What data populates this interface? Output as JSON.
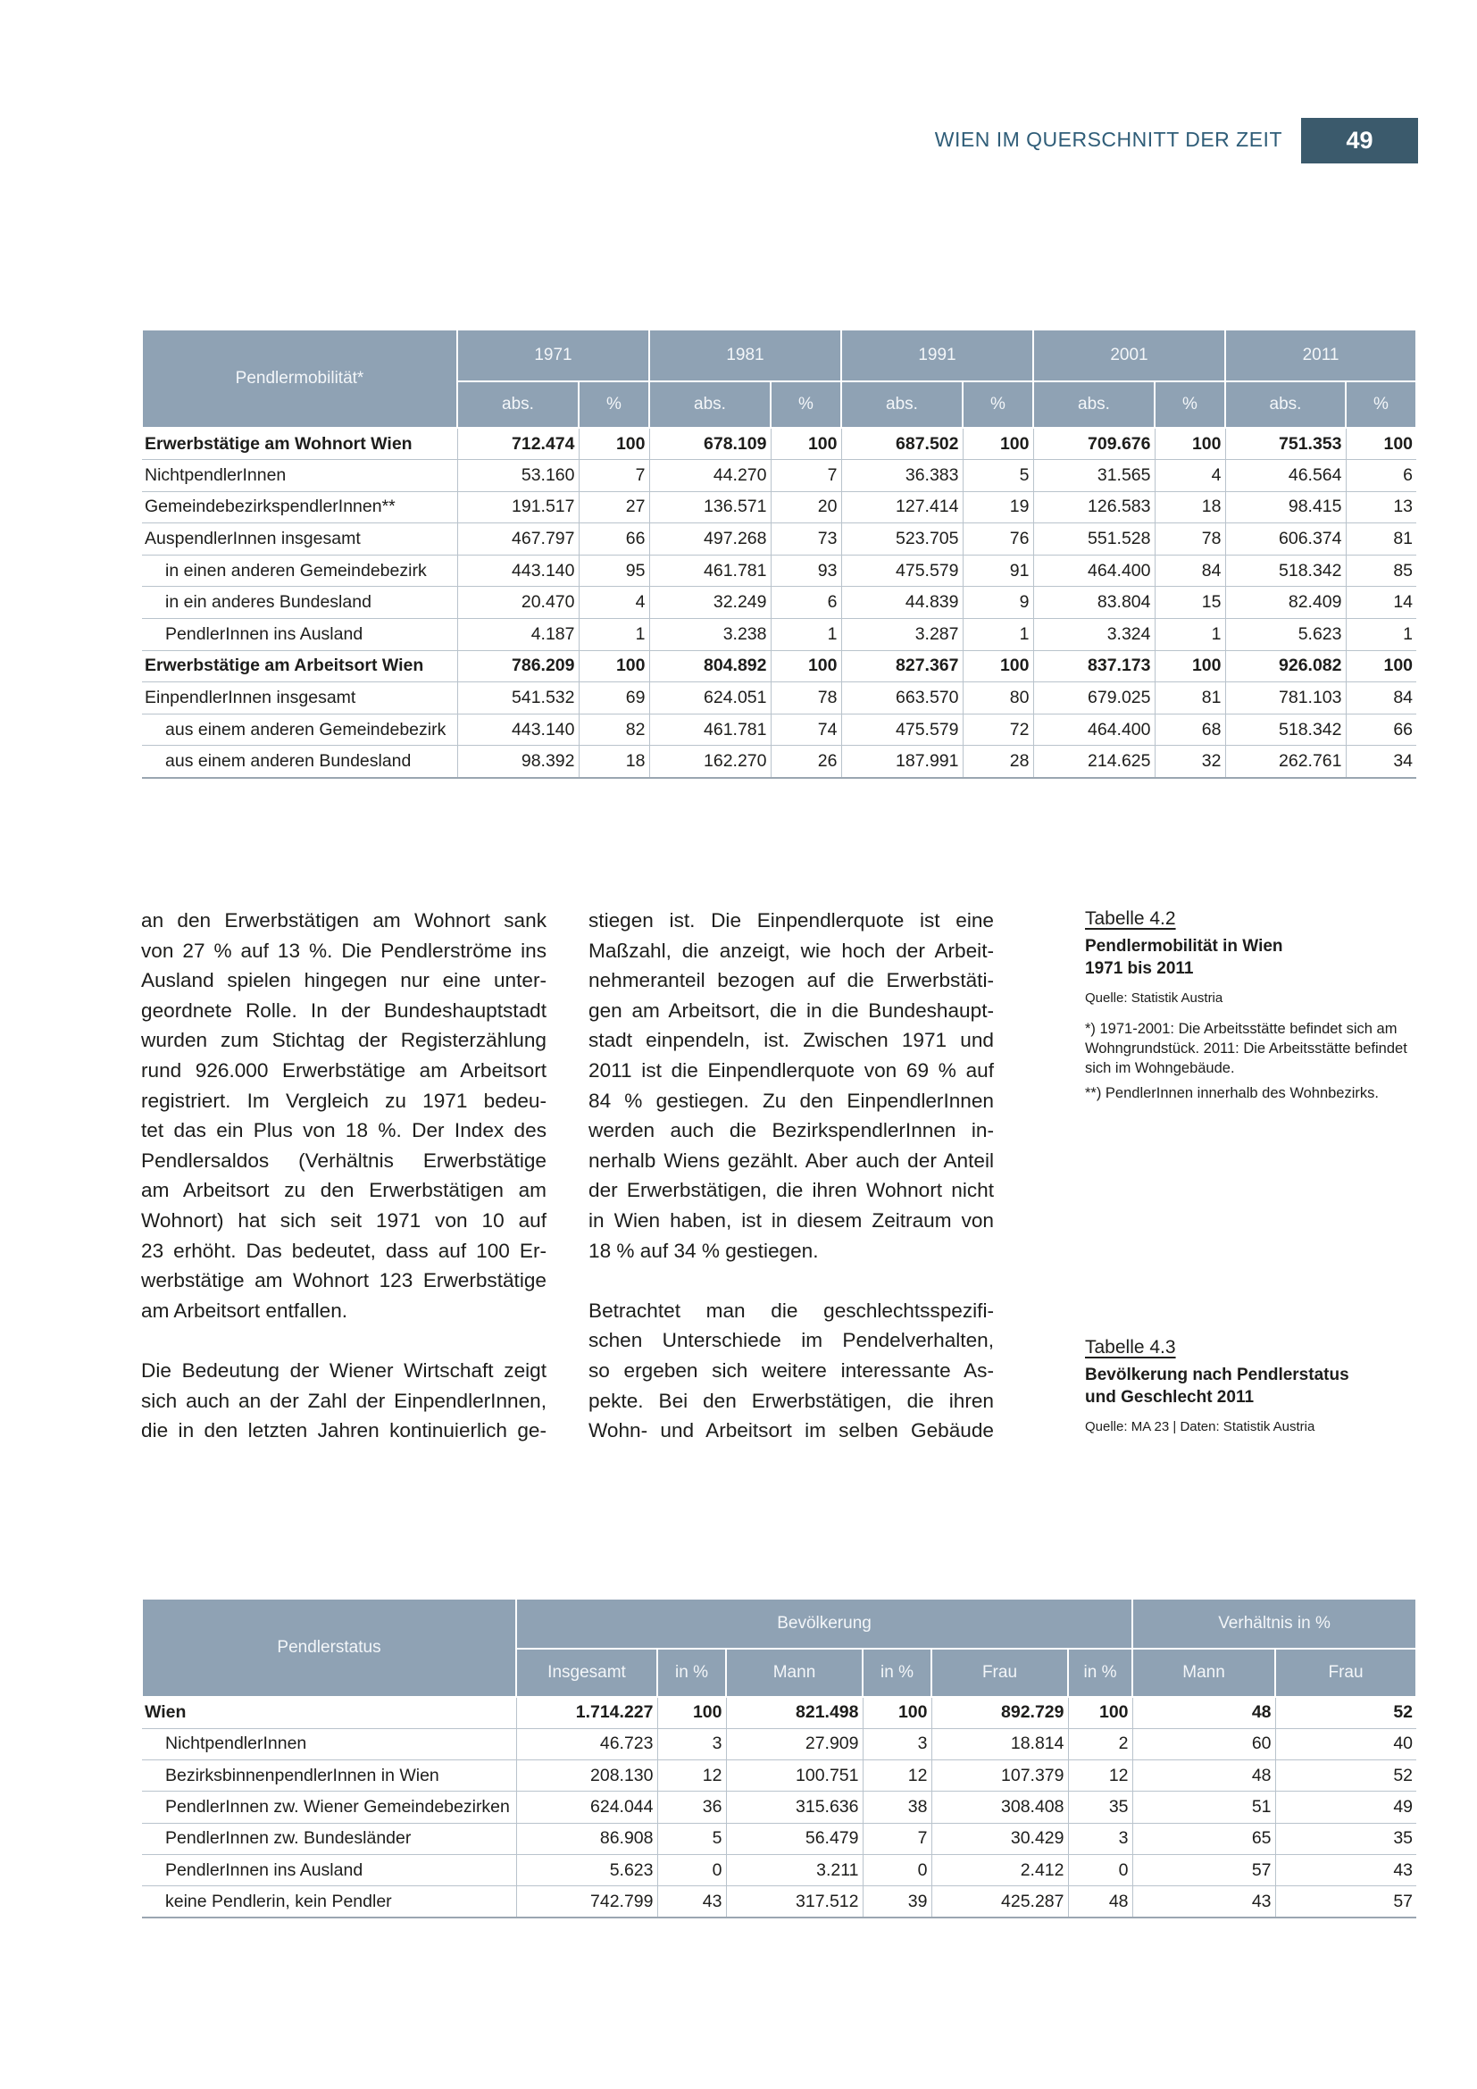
{
  "header": {
    "running_title": "WIEN IM QUERSCHNITT DER ZEIT",
    "page_number": "49"
  },
  "table_1": {
    "corner": "Pendlermobilität*",
    "years": [
      "1971",
      "1981",
      "1991",
      "2001",
      "2011"
    ],
    "subheaders": [
      "abs.",
      "%",
      "abs.",
      "%",
      "abs.",
      "%",
      "abs.",
      "%",
      "abs.",
      "%"
    ],
    "rows": [
      [
        "Erwerbstätige am Wohnort Wien",
        "712.474",
        "100",
        "678.109",
        "100",
        "687.502",
        "100",
        "709.676",
        "100",
        "751.353",
        "100"
      ],
      [
        "NichtpendlerInnen",
        "53.160",
        "7",
        "44.270",
        "7",
        "36.383",
        "5",
        "31.565",
        "4",
        "46.564",
        "6"
      ],
      [
        "GemeindebezirkspendlerInnen**",
        "191.517",
        "27",
        "136.571",
        "20",
        "127.414",
        "19",
        "126.583",
        "18",
        "98.415",
        "13"
      ],
      [
        "AuspendlerInnen insgesamt",
        "467.797",
        "66",
        "497.268",
        "73",
        "523.705",
        "76",
        "551.528",
        "78",
        "606.374",
        "81"
      ],
      [
        "in einen anderen Gemeindebezirk",
        "443.140",
        "95",
        "461.781",
        "93",
        "475.579",
        "91",
        "464.400",
        "84",
        "518.342",
        "85"
      ],
      [
        "in ein anderes Bundesland",
        "20.470",
        "4",
        "32.249",
        "6",
        "44.839",
        "9",
        "83.804",
        "15",
        "82.409",
        "14"
      ],
      [
        "PendlerInnen ins Ausland",
        "4.187",
        "1",
        "3.238",
        "1",
        "3.287",
        "1",
        "3.324",
        "1",
        "5.623",
        "1"
      ],
      [
        "Erwerbstätige am Arbeitsort Wien",
        "786.209",
        "100",
        "804.892",
        "100",
        "827.367",
        "100",
        "837.173",
        "100",
        "926.082",
        "100"
      ],
      [
        "EinpendlerInnen insgesamt",
        "541.532",
        "69",
        "624.051",
        "78",
        "663.570",
        "80",
        "679.025",
        "81",
        "781.103",
        "84"
      ],
      [
        "aus einem anderen Gemeindebezirk",
        "443.140",
        "82",
        "461.781",
        "74",
        "475.579",
        "72",
        "464.400",
        "68",
        "518.342",
        "66"
      ],
      [
        "aus einem anderen Bundesland",
        "98.392",
        "18",
        "162.270",
        "26",
        "187.991",
        "28",
        "214.625",
        "32",
        "262.761",
        "34"
      ]
    ]
  },
  "text_columns": [
    [
      [
        "an den Erwerbstätigen am Wohnort sank",
        "von 27 % auf 13 %. Die Pendlerströme ins",
        "Ausland spielen hingegen nur eine unter-",
        "geordnete Rolle. In der Bundeshauptstadt",
        "wurden zum Stichtag der Registerzählung",
        "rund 926.000 Erwerbstätige am Arbeitsort",
        "registriert. Im Vergleich zu 1971 bedeu-",
        "tet das ein Plus von 18 %. Der Index des",
        "Pendlersaldos (Verhältnis Erwerbstätige",
        "am Arbeitsort zu den Erwerbstätigen am",
        "Wohnort) hat sich seit 1971 von 10 auf",
        "23 erhöht. Das bedeutet, dass auf 100 Er-",
        "werbstätige am Wohnort 123 Erwerbstätige",
        "am Arbeitsort entfallen."
      ],
      [
        "Die Bedeutung der Wiener Wirtschaft zeigt",
        "sich auch an der Zahl der EinpendlerInnen,",
        "die in den letzten Jahren kontinuierlich ge-"
      ]
    ],
    [
      [
        "stiegen ist. Die Einpendlerquote ist eine",
        "Maßzahl, die anzeigt, wie hoch der Arbeit-",
        "nehmeranteil bezogen auf die Erwerbstäti-",
        "gen am Arbeitsort, die in die Bundeshaupt-",
        "stadt einpendeln, ist. Zwischen 1971 und",
        "2011 ist die Einpendlerquote von 69 % auf",
        "84 % gestiegen. Zu den EinpendlerInnen",
        "werden auch die BezirkspendlerInnen in-",
        "nerhalb Wiens gezählt. Aber auch der Anteil",
        "der Erwerbstätigen, die ihren Wohnort nicht",
        "in Wien haben, ist in diesem Zeitraum von",
        "18 % auf 34 % gestiegen."
      ],
      [
        "Betrachtet man die geschlechtsspezifi-",
        "schen Unterschiede im Pendelverhalten,",
        "so ergeben sich weitere interessante As-",
        "pekte. Bei den Erwerbstätigen, die ihren",
        "Wohn- und Arbeitsort im selben Gebäude"
      ]
    ]
  ],
  "captions": [
    {
      "label": "Tabelle 4.2",
      "title_lines": [
        "Pendlermobilität in Wien",
        "1971 bis 2011"
      ],
      "source": "Quelle: Statistik Austria",
      "notes": [
        "*) 1971-2001: Die Arbeitsstätte befindet sich am Wohngrundstück. 2011: Die Arbeitsstätte befindet sich im Wohngebäude.",
        "**) PendlerInnen innerhalb des Wohnbezirks."
      ]
    },
    {
      "label": "Tabelle 4.3",
      "title_lines": [
        "Bevölkerung nach Pendlerstatus",
        "und Geschlecht 2011"
      ],
      "source": "Quelle: MA 23 | Daten: Statistik Austria",
      "notes": []
    }
  ],
  "table_2": {
    "corner": "Pendlerstatus",
    "groups": [
      "Bevölkerung",
      "Verhältnis in %"
    ],
    "subheaders": [
      "Insgesamt",
      "in %",
      "Mann",
      "in %",
      "Frau",
      "in %",
      "Mann",
      "Frau"
    ],
    "rows": [
      [
        "Wien",
        "1.714.227",
        "100",
        "821.498",
        "100",
        "892.729",
        "100",
        "48",
        "52"
      ],
      [
        "NichtpendlerInnen",
        "46.723",
        "3",
        "27.909",
        "3",
        "18.814",
        "2",
        "60",
        "40"
      ],
      [
        "BezirksbinnenpendlerInnen in Wien",
        "208.130",
        "12",
        "100.751",
        "12",
        "107.379",
        "12",
        "48",
        "52"
      ],
      [
        "PendlerInnen zw. Wiener Gemeindebezirken",
        "624.044",
        "36",
        "315.636",
        "38",
        "308.408",
        "35",
        "51",
        "49"
      ],
      [
        "PendlerInnen zw. Bundesländer",
        "86.908",
        "5",
        "56.479",
        "7",
        "30.429",
        "3",
        "65",
        "35"
      ],
      [
        "PendlerInnen ins Ausland",
        "5.623",
        "0",
        "3.211",
        "0",
        "2.412",
        "0",
        "57",
        "43"
      ],
      [
        "keine Pendlerin, kein Pendler",
        "742.799",
        "43",
        "317.512",
        "39",
        "425.287",
        "48",
        "43",
        "57"
      ]
    ]
  }
}
